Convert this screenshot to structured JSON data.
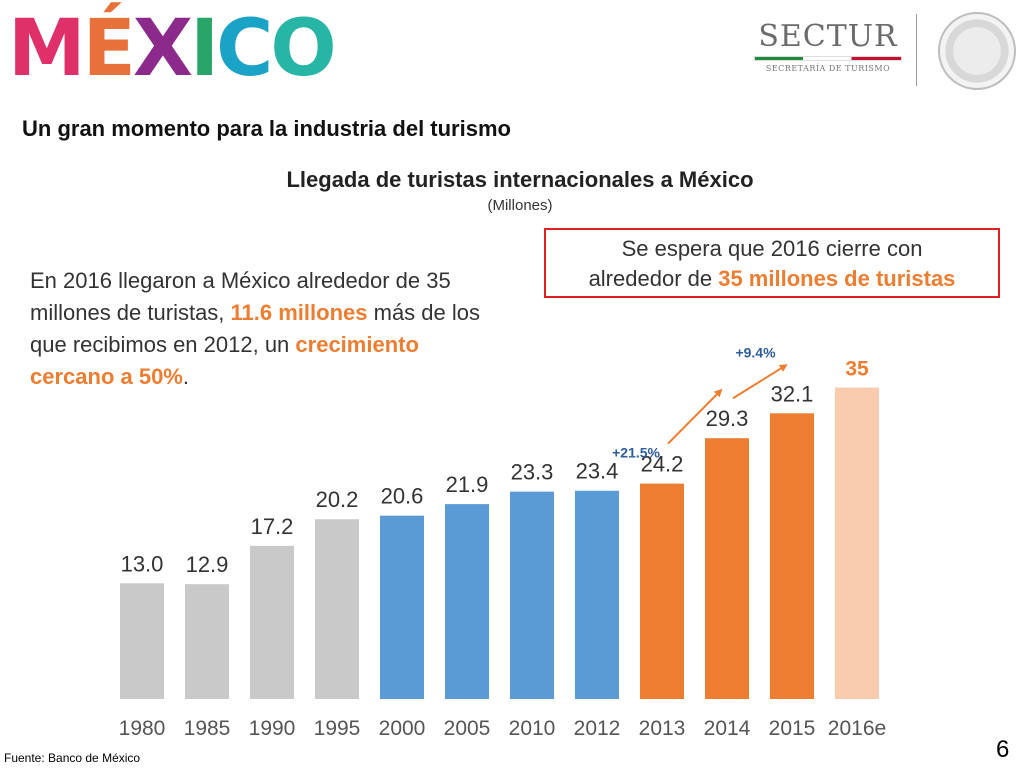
{
  "header": {
    "logo_letters": [
      "M",
      "É",
      "X",
      "I",
      "C",
      "O"
    ],
    "logo_colors": [
      "#e0306a",
      "#e8703a",
      "#8c2a8c",
      "#2aa56a",
      "#1aa3c6",
      "#27b5a6"
    ],
    "sectur_name": "SECTUR",
    "sectur_subtitle": "SECRETARÍA DE TURISMO",
    "seal_icon": "national-seal-icon"
  },
  "slide": {
    "heading": "Un gran momento para la industria del turismo",
    "body_parts": [
      "En 2016 llegaron a México alrededor de 35 millones de turistas, ",
      "11.6 millones",
      " más de los que recibimos en 2012, un ",
      "crecimiento cercano a 50%",
      "."
    ],
    "callout_line1": "Se espera que 2016 cierre con",
    "callout_plain": "alrededor de ",
    "callout_highlight": "35 millones de turistas",
    "footer": "Fuente: Banco de México",
    "page_number": "6"
  },
  "colors": {
    "gray": "#c9c9c9",
    "blue": "#5b9bd5",
    "orange": "#ed7d31",
    "light_orange": "#f8cbad",
    "highlight": "#ed7d31",
    "callout_border": "#e0201f"
  },
  "chart_data": {
    "type": "bar",
    "title": "Llegada de turistas internacionales a México",
    "subtitle": "(Millones)",
    "categories": [
      "1980",
      "1985",
      "1990",
      "1995",
      "2000",
      "2005",
      "2010",
      "2012",
      "2013",
      "2014",
      "2015",
      "2016e"
    ],
    "values": [
      13.0,
      12.9,
      17.2,
      20.2,
      20.6,
      21.9,
      23.3,
      23.4,
      24.2,
      29.3,
      32.1,
      35
    ],
    "value_labels": [
      "13.0",
      "12.9",
      "17.2",
      "20.2",
      "20.6",
      "21.9",
      "23.3",
      "23.4",
      "24.2",
      "29.3",
      "32.1",
      "35"
    ],
    "bar_colors": [
      "gray",
      "gray",
      "gray",
      "gray",
      "blue",
      "blue",
      "blue",
      "blue",
      "orange",
      "orange",
      "orange",
      "light_orange"
    ],
    "ylim": [
      0,
      40
    ],
    "grid": false,
    "annotations": [
      {
        "text": "+21.5%",
        "from": "2013",
        "to": "2014"
      },
      {
        "text": "+9.4%",
        "from": "2014",
        "to": "2015"
      }
    ]
  }
}
